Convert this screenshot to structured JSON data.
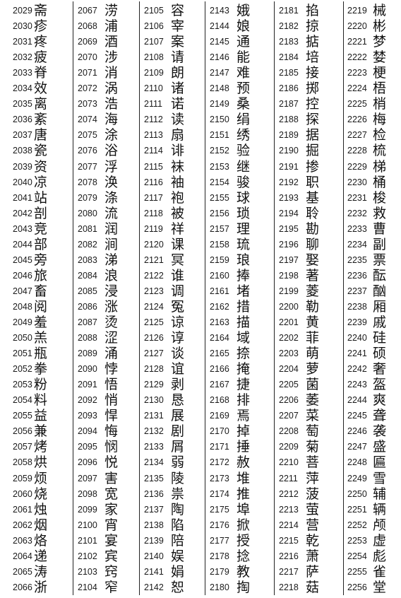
{
  "columns": [
    {
      "entries": [
        {
          "n": "2029",
          "c": "斋"
        },
        {
          "n": "2030",
          "c": "疹"
        },
        {
          "n": "2031",
          "c": "疼"
        },
        {
          "n": "2032",
          "c": "疲"
        },
        {
          "n": "2033",
          "c": "脊"
        },
        {
          "n": "2034",
          "c": "效"
        },
        {
          "n": "2035",
          "c": "离"
        },
        {
          "n": "2036",
          "c": "紊"
        },
        {
          "n": "2037",
          "c": "唐"
        },
        {
          "n": "2038",
          "c": "瓷"
        },
        {
          "n": "2039",
          "c": "资"
        },
        {
          "n": "2040",
          "c": "凉"
        },
        {
          "n": "2041",
          "c": "站"
        },
        {
          "n": "2042",
          "c": "剖"
        },
        {
          "n": "2043",
          "c": "竞"
        },
        {
          "n": "2044",
          "c": "部"
        },
        {
          "n": "2045",
          "c": "旁"
        },
        {
          "n": "2046",
          "c": "旅"
        },
        {
          "n": "2047",
          "c": "畜"
        },
        {
          "n": "2048",
          "c": "阅"
        },
        {
          "n": "2049",
          "c": "羞"
        },
        {
          "n": "2050",
          "c": "羔"
        },
        {
          "n": "2051",
          "c": "瓶"
        },
        {
          "n": "2052",
          "c": "拳"
        },
        {
          "n": "2053",
          "c": "粉"
        },
        {
          "n": "2054",
          "c": "料"
        },
        {
          "n": "2055",
          "c": "益"
        },
        {
          "n": "2056",
          "c": "兼"
        },
        {
          "n": "2057",
          "c": "烤"
        },
        {
          "n": "2058",
          "c": "烘"
        },
        {
          "n": "2059",
          "c": "烦"
        },
        {
          "n": "2060",
          "c": "烧"
        },
        {
          "n": "2061",
          "c": "烛"
        },
        {
          "n": "2062",
          "c": "烟"
        },
        {
          "n": "2063",
          "c": "烙"
        },
        {
          "n": "2064",
          "c": "递"
        },
        {
          "n": "2065",
          "c": "涛"
        },
        {
          "n": "2066",
          "c": "浙"
        }
      ]
    },
    {
      "entries": [
        {
          "n": "2067",
          "c": "涝"
        },
        {
          "n": "2068",
          "c": "浦"
        },
        {
          "n": "2069",
          "c": "酒"
        },
        {
          "n": "2070",
          "c": "涉"
        },
        {
          "n": "2071",
          "c": "消"
        },
        {
          "n": "2072",
          "c": "涡"
        },
        {
          "n": "2073",
          "c": "浩"
        },
        {
          "n": "2074",
          "c": "海"
        },
        {
          "n": "2075",
          "c": "涂"
        },
        {
          "n": "2076",
          "c": "浴"
        },
        {
          "n": "2077",
          "c": "浮"
        },
        {
          "n": "2078",
          "c": "涣"
        },
        {
          "n": "2079",
          "c": "涤"
        },
        {
          "n": "2080",
          "c": "流"
        },
        {
          "n": "2081",
          "c": "润"
        },
        {
          "n": "2082",
          "c": "涧"
        },
        {
          "n": "2083",
          "c": "涕"
        },
        {
          "n": "2084",
          "c": "浪"
        },
        {
          "n": "2085",
          "c": "浸"
        },
        {
          "n": "2086",
          "c": "涨"
        },
        {
          "n": "2087",
          "c": "烫"
        },
        {
          "n": "2088",
          "c": "涩"
        },
        {
          "n": "2089",
          "c": "涌"
        },
        {
          "n": "2090",
          "c": "悖"
        },
        {
          "n": "2091",
          "c": "悟"
        },
        {
          "n": "2092",
          "c": "悄"
        },
        {
          "n": "2093",
          "c": "悍"
        },
        {
          "n": "2094",
          "c": "悔"
        },
        {
          "n": "2095",
          "c": "悯"
        },
        {
          "n": "2096",
          "c": "悦"
        },
        {
          "n": "2097",
          "c": "害"
        },
        {
          "n": "2098",
          "c": "宽"
        },
        {
          "n": "2099",
          "c": "家"
        },
        {
          "n": "2100",
          "c": "宵"
        },
        {
          "n": "2101",
          "c": "宴"
        },
        {
          "n": "2102",
          "c": "宾"
        },
        {
          "n": "2103",
          "c": "窍"
        },
        {
          "n": "2104",
          "c": "窄"
        }
      ]
    },
    {
      "entries": [
        {
          "n": "2105",
          "c": "容"
        },
        {
          "n": "2106",
          "c": "宰"
        },
        {
          "n": "2107",
          "c": "案"
        },
        {
          "n": "2108",
          "c": "请"
        },
        {
          "n": "2109",
          "c": "朗"
        },
        {
          "n": "2110",
          "c": "诸"
        },
        {
          "n": "2111",
          "c": "诺"
        },
        {
          "n": "2112",
          "c": "读"
        },
        {
          "n": "2113",
          "c": "扇"
        },
        {
          "n": "2114",
          "c": "诽"
        },
        {
          "n": "2115",
          "c": "袜"
        },
        {
          "n": "2116",
          "c": "袖"
        },
        {
          "n": "2117",
          "c": "袍"
        },
        {
          "n": "2118",
          "c": "被"
        },
        {
          "n": "2119",
          "c": "祥"
        },
        {
          "n": "2120",
          "c": "课"
        },
        {
          "n": "2121",
          "c": "冥"
        },
        {
          "n": "2122",
          "c": "谁"
        },
        {
          "n": "2123",
          "c": "调"
        },
        {
          "n": "2124",
          "c": "冤"
        },
        {
          "n": "2125",
          "c": "谅"
        },
        {
          "n": "2126",
          "c": "谆"
        },
        {
          "n": "2127",
          "c": "谈"
        },
        {
          "n": "2128",
          "c": "谊"
        },
        {
          "n": "2129",
          "c": "剥"
        },
        {
          "n": "2130",
          "c": "恳"
        },
        {
          "n": "2131",
          "c": "展"
        },
        {
          "n": "2132",
          "c": "剧"
        },
        {
          "n": "2133",
          "c": "屑"
        },
        {
          "n": "2134",
          "c": "弱"
        },
        {
          "n": "2135",
          "c": "陵"
        },
        {
          "n": "2136",
          "c": "祟"
        },
        {
          "n": "2137",
          "c": "陶"
        },
        {
          "n": "2138",
          "c": "陷"
        },
        {
          "n": "2139",
          "c": "陪"
        },
        {
          "n": "2140",
          "c": "娱"
        },
        {
          "n": "2141",
          "c": "娟"
        },
        {
          "n": "2142",
          "c": "恕"
        }
      ]
    },
    {
      "entries": [
        {
          "n": "2143",
          "c": "娥"
        },
        {
          "n": "2144",
          "c": "娘"
        },
        {
          "n": "2145",
          "c": "通"
        },
        {
          "n": "2146",
          "c": "能"
        },
        {
          "n": "2147",
          "c": "难"
        },
        {
          "n": "2148",
          "c": "预"
        },
        {
          "n": "2149",
          "c": "桑"
        },
        {
          "n": "2150",
          "c": "绢"
        },
        {
          "n": "2151",
          "c": "绣"
        },
        {
          "n": "2152",
          "c": "验"
        },
        {
          "n": "2153",
          "c": "继"
        },
        {
          "n": "2154",
          "c": "骏"
        },
        {
          "n": "2155",
          "c": "球"
        },
        {
          "n": "2156",
          "c": "琐"
        },
        {
          "n": "2157",
          "c": "理"
        },
        {
          "n": "2158",
          "c": "琉"
        },
        {
          "n": "2159",
          "c": "琅"
        },
        {
          "n": "2160",
          "c": "捧"
        },
        {
          "n": "2161",
          "c": "堵"
        },
        {
          "n": "2162",
          "c": "措"
        },
        {
          "n": "2163",
          "c": "描"
        },
        {
          "n": "2164",
          "c": "域"
        },
        {
          "n": "2165",
          "c": "捺"
        },
        {
          "n": "2166",
          "c": "掩"
        },
        {
          "n": "2167",
          "c": "捷"
        },
        {
          "n": "2168",
          "c": "排"
        },
        {
          "n": "2169",
          "c": "焉"
        },
        {
          "n": "2170",
          "c": "掉"
        },
        {
          "n": "2171",
          "c": "捶"
        },
        {
          "n": "2172",
          "c": "赦"
        },
        {
          "n": "2173",
          "c": "堆"
        },
        {
          "n": "2174",
          "c": "推"
        },
        {
          "n": "2175",
          "c": "埠"
        },
        {
          "n": "2176",
          "c": "掀"
        },
        {
          "n": "2177",
          "c": "授"
        },
        {
          "n": "2178",
          "c": "捻"
        },
        {
          "n": "2179",
          "c": "教"
        },
        {
          "n": "2180",
          "c": "掏"
        }
      ]
    },
    {
      "entries": [
        {
          "n": "2181",
          "c": "掐"
        },
        {
          "n": "2182",
          "c": "掠"
        },
        {
          "n": "2183",
          "c": "掂"
        },
        {
          "n": "2184",
          "c": "培"
        },
        {
          "n": "2185",
          "c": "接"
        },
        {
          "n": "2186",
          "c": "掷"
        },
        {
          "n": "2187",
          "c": "控"
        },
        {
          "n": "2188",
          "c": "探"
        },
        {
          "n": "2189",
          "c": "据"
        },
        {
          "n": "2190",
          "c": "掘"
        },
        {
          "n": "2191",
          "c": "掺"
        },
        {
          "n": "2192",
          "c": "职"
        },
        {
          "n": "2193",
          "c": "基"
        },
        {
          "n": "2194",
          "c": "聆"
        },
        {
          "n": "2195",
          "c": "勘"
        },
        {
          "n": "2196",
          "c": "聊"
        },
        {
          "n": "2197",
          "c": "娶"
        },
        {
          "n": "2198",
          "c": "著"
        },
        {
          "n": "2199",
          "c": "菱"
        },
        {
          "n": "2200",
          "c": "勒"
        },
        {
          "n": "2201",
          "c": "黄"
        },
        {
          "n": "2202",
          "c": "菲"
        },
        {
          "n": "2203",
          "c": "萌"
        },
        {
          "n": "2204",
          "c": "萝"
        },
        {
          "n": "2205",
          "c": "菌"
        },
        {
          "n": "2206",
          "c": "萎"
        },
        {
          "n": "2207",
          "c": "菜"
        },
        {
          "n": "2208",
          "c": "萄"
        },
        {
          "n": "2209",
          "c": "菊"
        },
        {
          "n": "2210",
          "c": "菩"
        },
        {
          "n": "2211",
          "c": "萍"
        },
        {
          "n": "2212",
          "c": "菠"
        },
        {
          "n": "2213",
          "c": "萤"
        },
        {
          "n": "2214",
          "c": "营"
        },
        {
          "n": "2215",
          "c": "乾"
        },
        {
          "n": "2216",
          "c": "萧"
        },
        {
          "n": "2217",
          "c": "萨"
        },
        {
          "n": "2218",
          "c": "菇"
        }
      ]
    },
    {
      "entries": [
        {
          "n": "2219",
          "c": "械"
        },
        {
          "n": "2220",
          "c": "彬"
        },
        {
          "n": "2221",
          "c": "梦"
        },
        {
          "n": "2222",
          "c": "婪"
        },
        {
          "n": "2223",
          "c": "梗"
        },
        {
          "n": "2224",
          "c": "梧"
        },
        {
          "n": "2225",
          "c": "梢"
        },
        {
          "n": "2226",
          "c": "梅"
        },
        {
          "n": "2227",
          "c": "检"
        },
        {
          "n": "2228",
          "c": "梳"
        },
        {
          "n": "2229",
          "c": "梯"
        },
        {
          "n": "2230",
          "c": "桶"
        },
        {
          "n": "2231",
          "c": "梭"
        },
        {
          "n": "2232",
          "c": "救"
        },
        {
          "n": "2233",
          "c": "曹"
        },
        {
          "n": "2234",
          "c": "副"
        },
        {
          "n": "2235",
          "c": "票"
        },
        {
          "n": "2236",
          "c": "酝"
        },
        {
          "n": "2237",
          "c": "酗"
        },
        {
          "n": "2238",
          "c": "厢"
        },
        {
          "n": "2239",
          "c": "戚"
        },
        {
          "n": "2240",
          "c": "硅"
        },
        {
          "n": "2241",
          "c": "硕"
        },
        {
          "n": "2242",
          "c": "奢"
        },
        {
          "n": "2243",
          "c": "盔"
        },
        {
          "n": "2244",
          "c": "爽"
        },
        {
          "n": "2245",
          "c": "聋"
        },
        {
          "n": "2246",
          "c": "袭"
        },
        {
          "n": "2247",
          "c": "盛"
        },
        {
          "n": "2248",
          "c": "匾"
        },
        {
          "n": "2249",
          "c": "雪"
        },
        {
          "n": "2250",
          "c": "辅"
        },
        {
          "n": "2251",
          "c": "辆"
        },
        {
          "n": "2252",
          "c": "颅"
        },
        {
          "n": "2253",
          "c": "虚"
        },
        {
          "n": "2254",
          "c": "彪"
        },
        {
          "n": "2255",
          "c": "雀"
        },
        {
          "n": "2256",
          "c": "堂"
        }
      ]
    }
  ]
}
